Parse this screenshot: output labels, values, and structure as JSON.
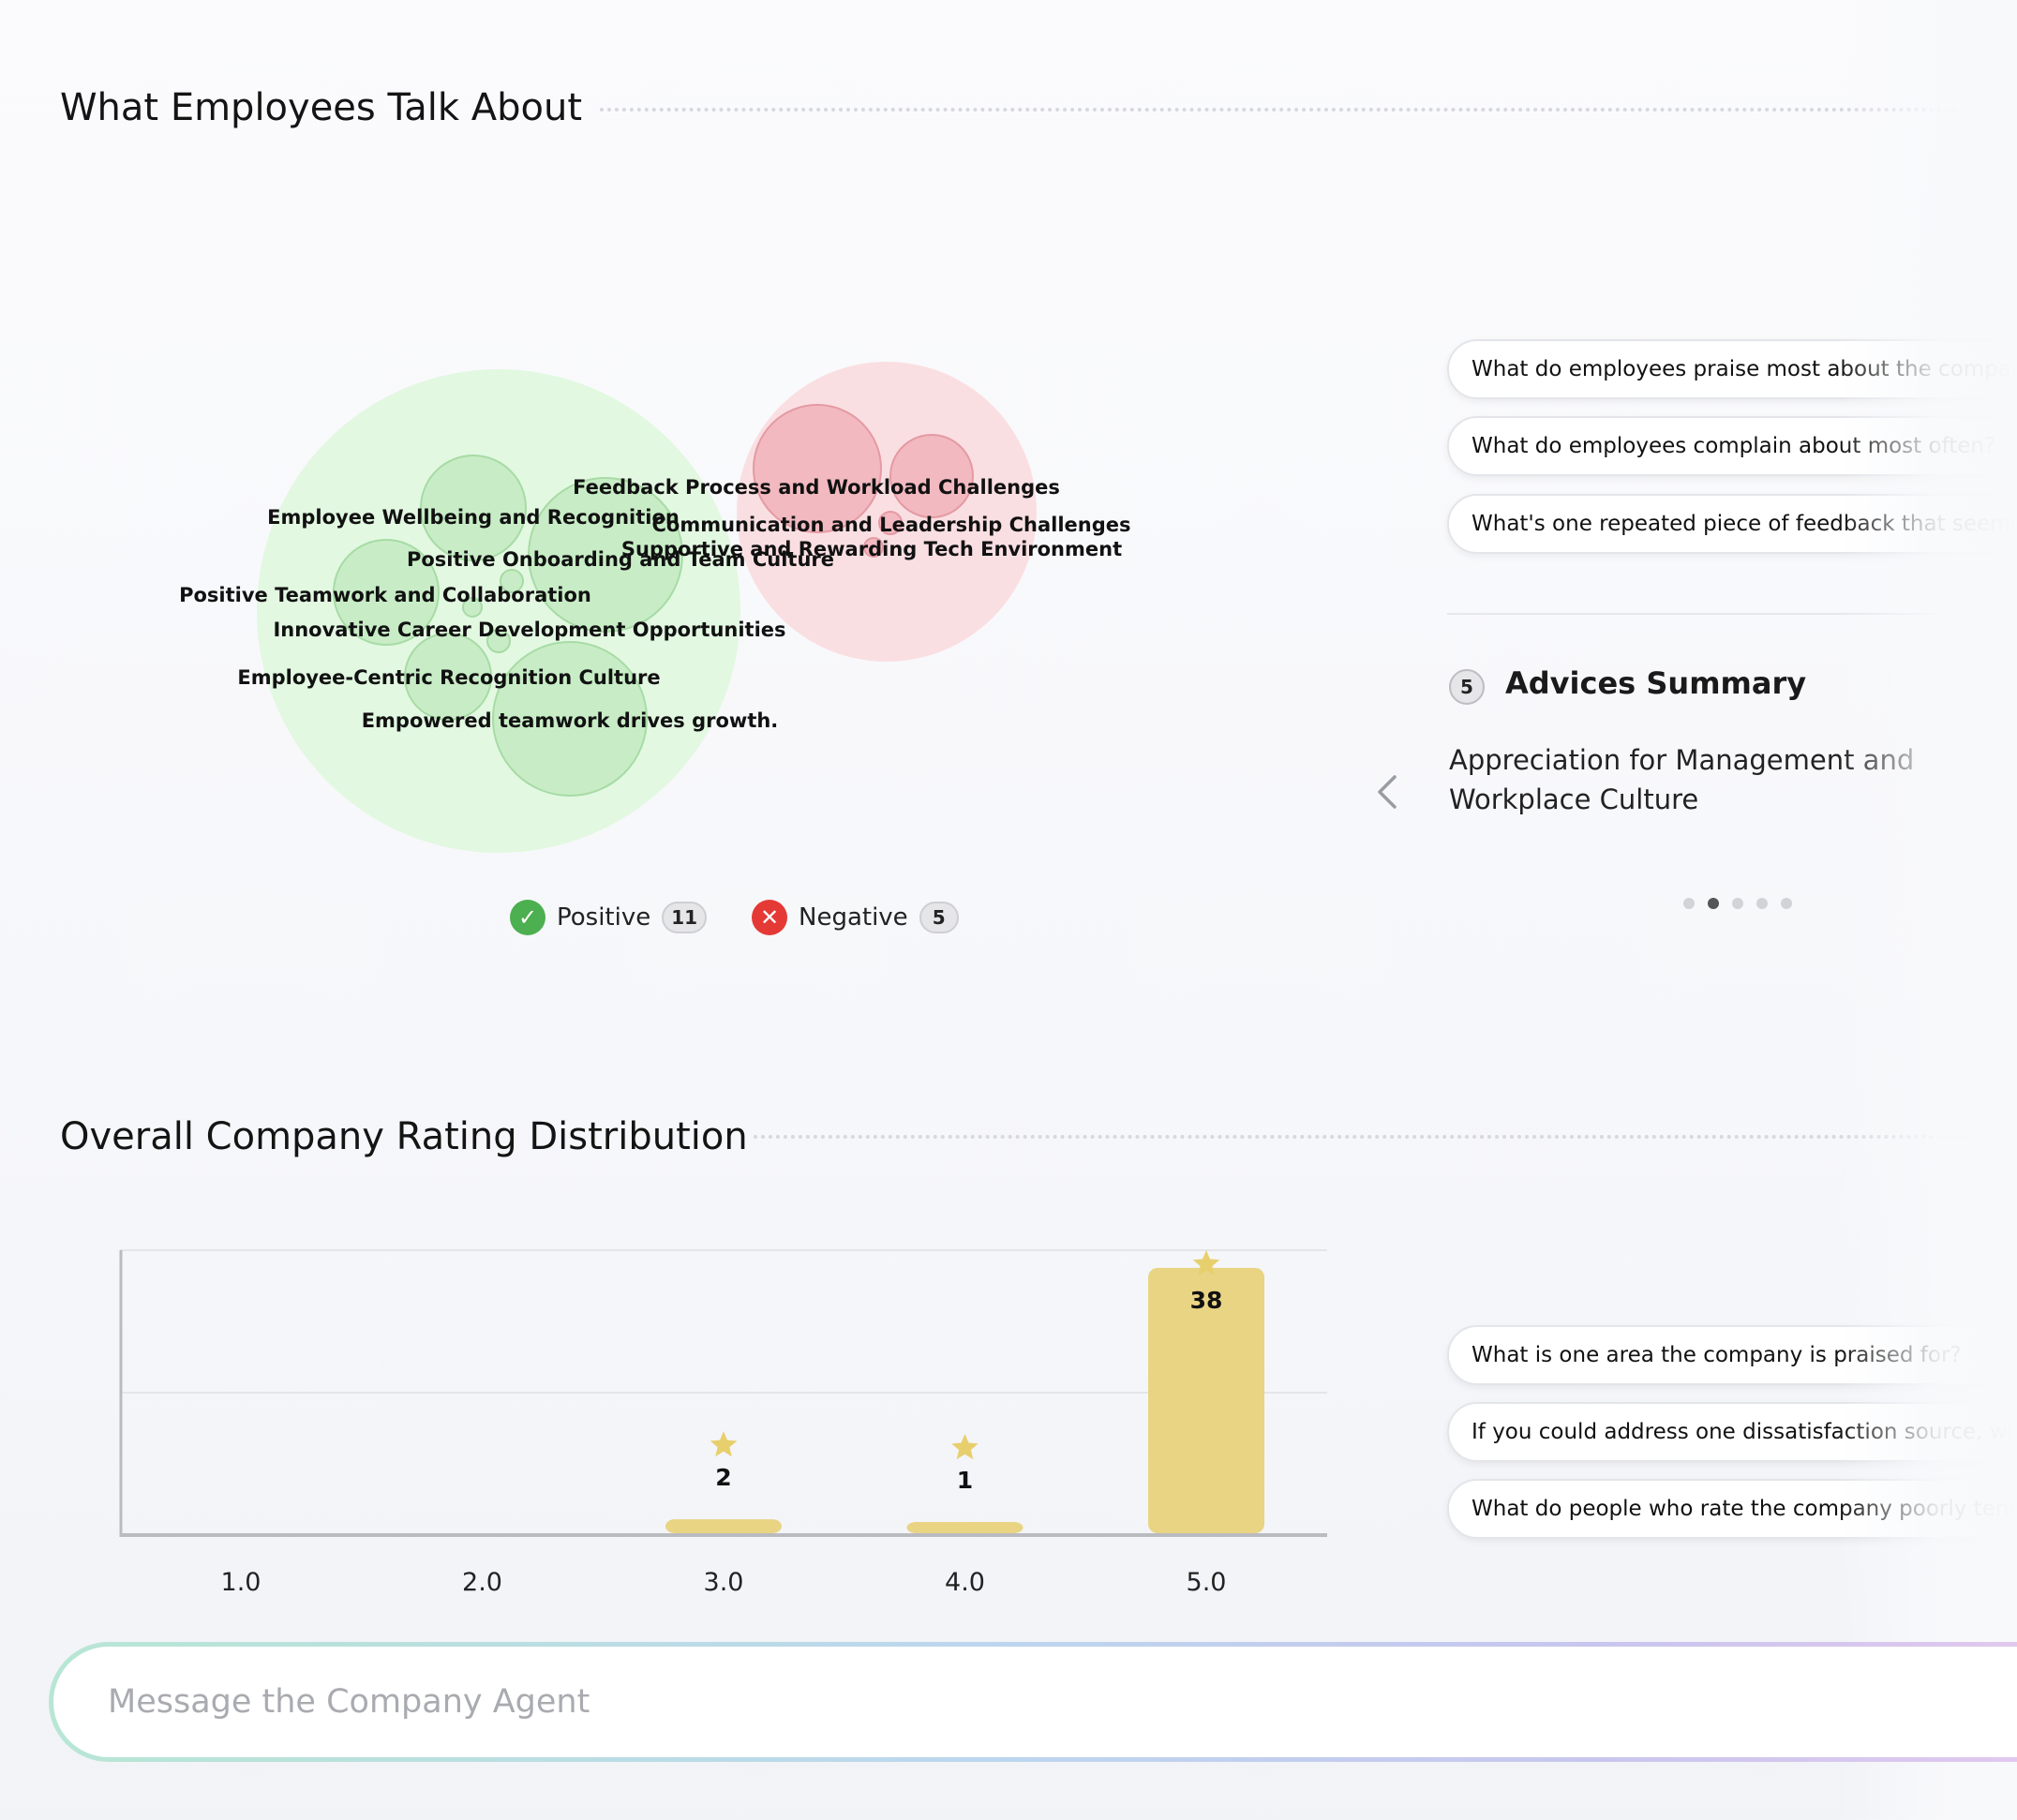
{
  "topics_section": {
    "title": "What Employees Talk About",
    "topics": [
      {
        "label": "Feedback Process and Workload Challenges",
        "sentiment": "negative"
      },
      {
        "label": "Employee Wellbeing and Recognition",
        "sentiment": "positive"
      },
      {
        "label": "Communication and Leadership Challenges",
        "sentiment": "negative"
      },
      {
        "label": "Positive Onboarding and Team Culture",
        "sentiment": "positive"
      },
      {
        "label": "Supportive and Rewarding Tech Environment",
        "sentiment": "positive"
      },
      {
        "label": "Positive Teamwork and Collaboration",
        "sentiment": "positive"
      },
      {
        "label": "Innovative Career Development Opportunities",
        "sentiment": "positive"
      },
      {
        "label": "Employee-Centric Recognition Culture",
        "sentiment": "positive"
      },
      {
        "label": "Empowered teamwork drives growth.",
        "sentiment": "positive"
      }
    ],
    "legend": {
      "positive_label": "Positive",
      "positive_count": "11",
      "negative_label": "Negative",
      "negative_count": "5"
    },
    "colors": {
      "positive": "#4caf50",
      "negative": "#e53935",
      "positive_bubble": "#c9f2c9",
      "negative_bubble": "#f8d4d8"
    }
  },
  "suggested_questions_top": [
    "What do employees praise most about the company?",
    "What do employees complain about most often?",
    "What's one repeated piece of feedback that seems"
  ],
  "advices": {
    "count": "5",
    "title": "Advices Summary",
    "text": "Appreciation for Management and Workplace Culture",
    "pages": 5,
    "active_page": 2
  },
  "rating_section": {
    "title": "Overall Company Rating Distribution"
  },
  "chart_data": {
    "type": "bar",
    "categories": [
      "1.0",
      "2.0",
      "3.0",
      "4.0",
      "5.0"
    ],
    "values": [
      0,
      0,
      2,
      1,
      38
    ],
    "data_labels": [
      "",
      "",
      "2",
      "1",
      "38"
    ],
    "ylim": [
      0,
      40
    ],
    "grid": true,
    "bar_color": "#e8d483",
    "star_color": "#e8cf6e"
  },
  "suggested_questions_bottom": [
    "What is one area the company is praised for?",
    "If you could address one dissatisfaction source, what",
    "What do people who rate the company poorly tend"
  ],
  "chat": {
    "placeholder": "Message the Company Agent"
  }
}
